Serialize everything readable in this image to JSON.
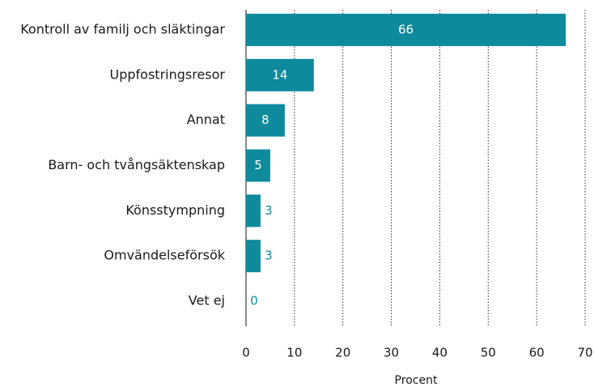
{
  "chart_data": {
    "type": "barh",
    "categories": [
      "Kontroll av familj och släktingar",
      "Uppfostringsresor",
      "Annat",
      "Barn- och tvångsäktenskap",
      "Könsstympning",
      "Omvändelseförsök",
      "Vet ej"
    ],
    "values": [
      66,
      14,
      8,
      5,
      3,
      3,
      0
    ],
    "color": "#0e8a9c",
    "xlabel": "Procent",
    "xlim": [
      0,
      70
    ],
    "xticks": [
      0,
      10,
      20,
      30,
      40,
      50,
      60,
      70
    ],
    "grid": true
  }
}
